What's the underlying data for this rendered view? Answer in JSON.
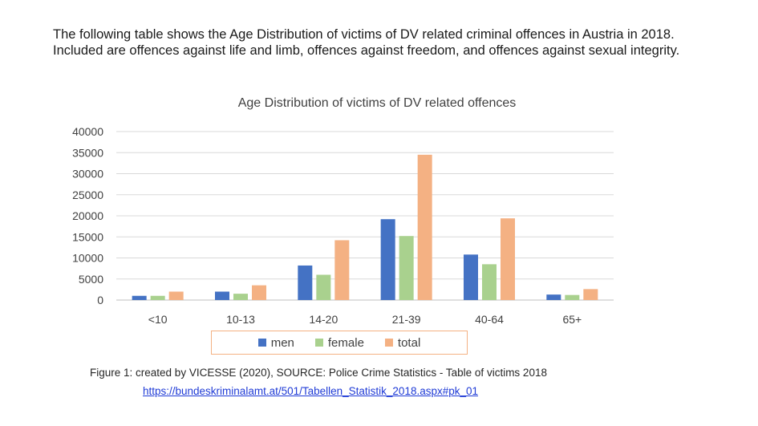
{
  "intro_text": "The following table shows the Age Distribution of victims of DV related criminal offences in Austria in 2018. Included are offences against life and limb, offences against freedom, and offences against sexual integrity.",
  "caption": "Figure 1: created by VICESSE (2020), SOURCE: Police Crime Statistics - Table of victims 2018",
  "source_link": "https://bundeskriminalamt.at/501/Tabellen_Statistik_2018.aspx#pk_01",
  "chart_data": {
    "type": "bar",
    "title": "Age Distribution of victims of DV related offences",
    "xlabel": "",
    "ylabel": "",
    "categories": [
      "<10",
      "10-13",
      "14-20",
      "21-39",
      "40-64",
      "65+"
    ],
    "ylim": [
      0,
      40000
    ],
    "yticks": [
      0,
      5000,
      10000,
      15000,
      20000,
      25000,
      30000,
      35000,
      40000
    ],
    "grid": true,
    "legend_position": "bottom",
    "series": [
      {
        "name": "men",
        "color": "#4472c4",
        "values": [
          1000,
          2000,
          8200,
          19200,
          10800,
          1300
        ]
      },
      {
        "name": "female",
        "color": "#a9d18e",
        "values": [
          1000,
          1500,
          6000,
          15200,
          8500,
          1200
        ]
      },
      {
        "name": "total",
        "color": "#f4b183",
        "values": [
          2000,
          3500,
          14200,
          34500,
          19400,
          2600
        ]
      }
    ]
  }
}
